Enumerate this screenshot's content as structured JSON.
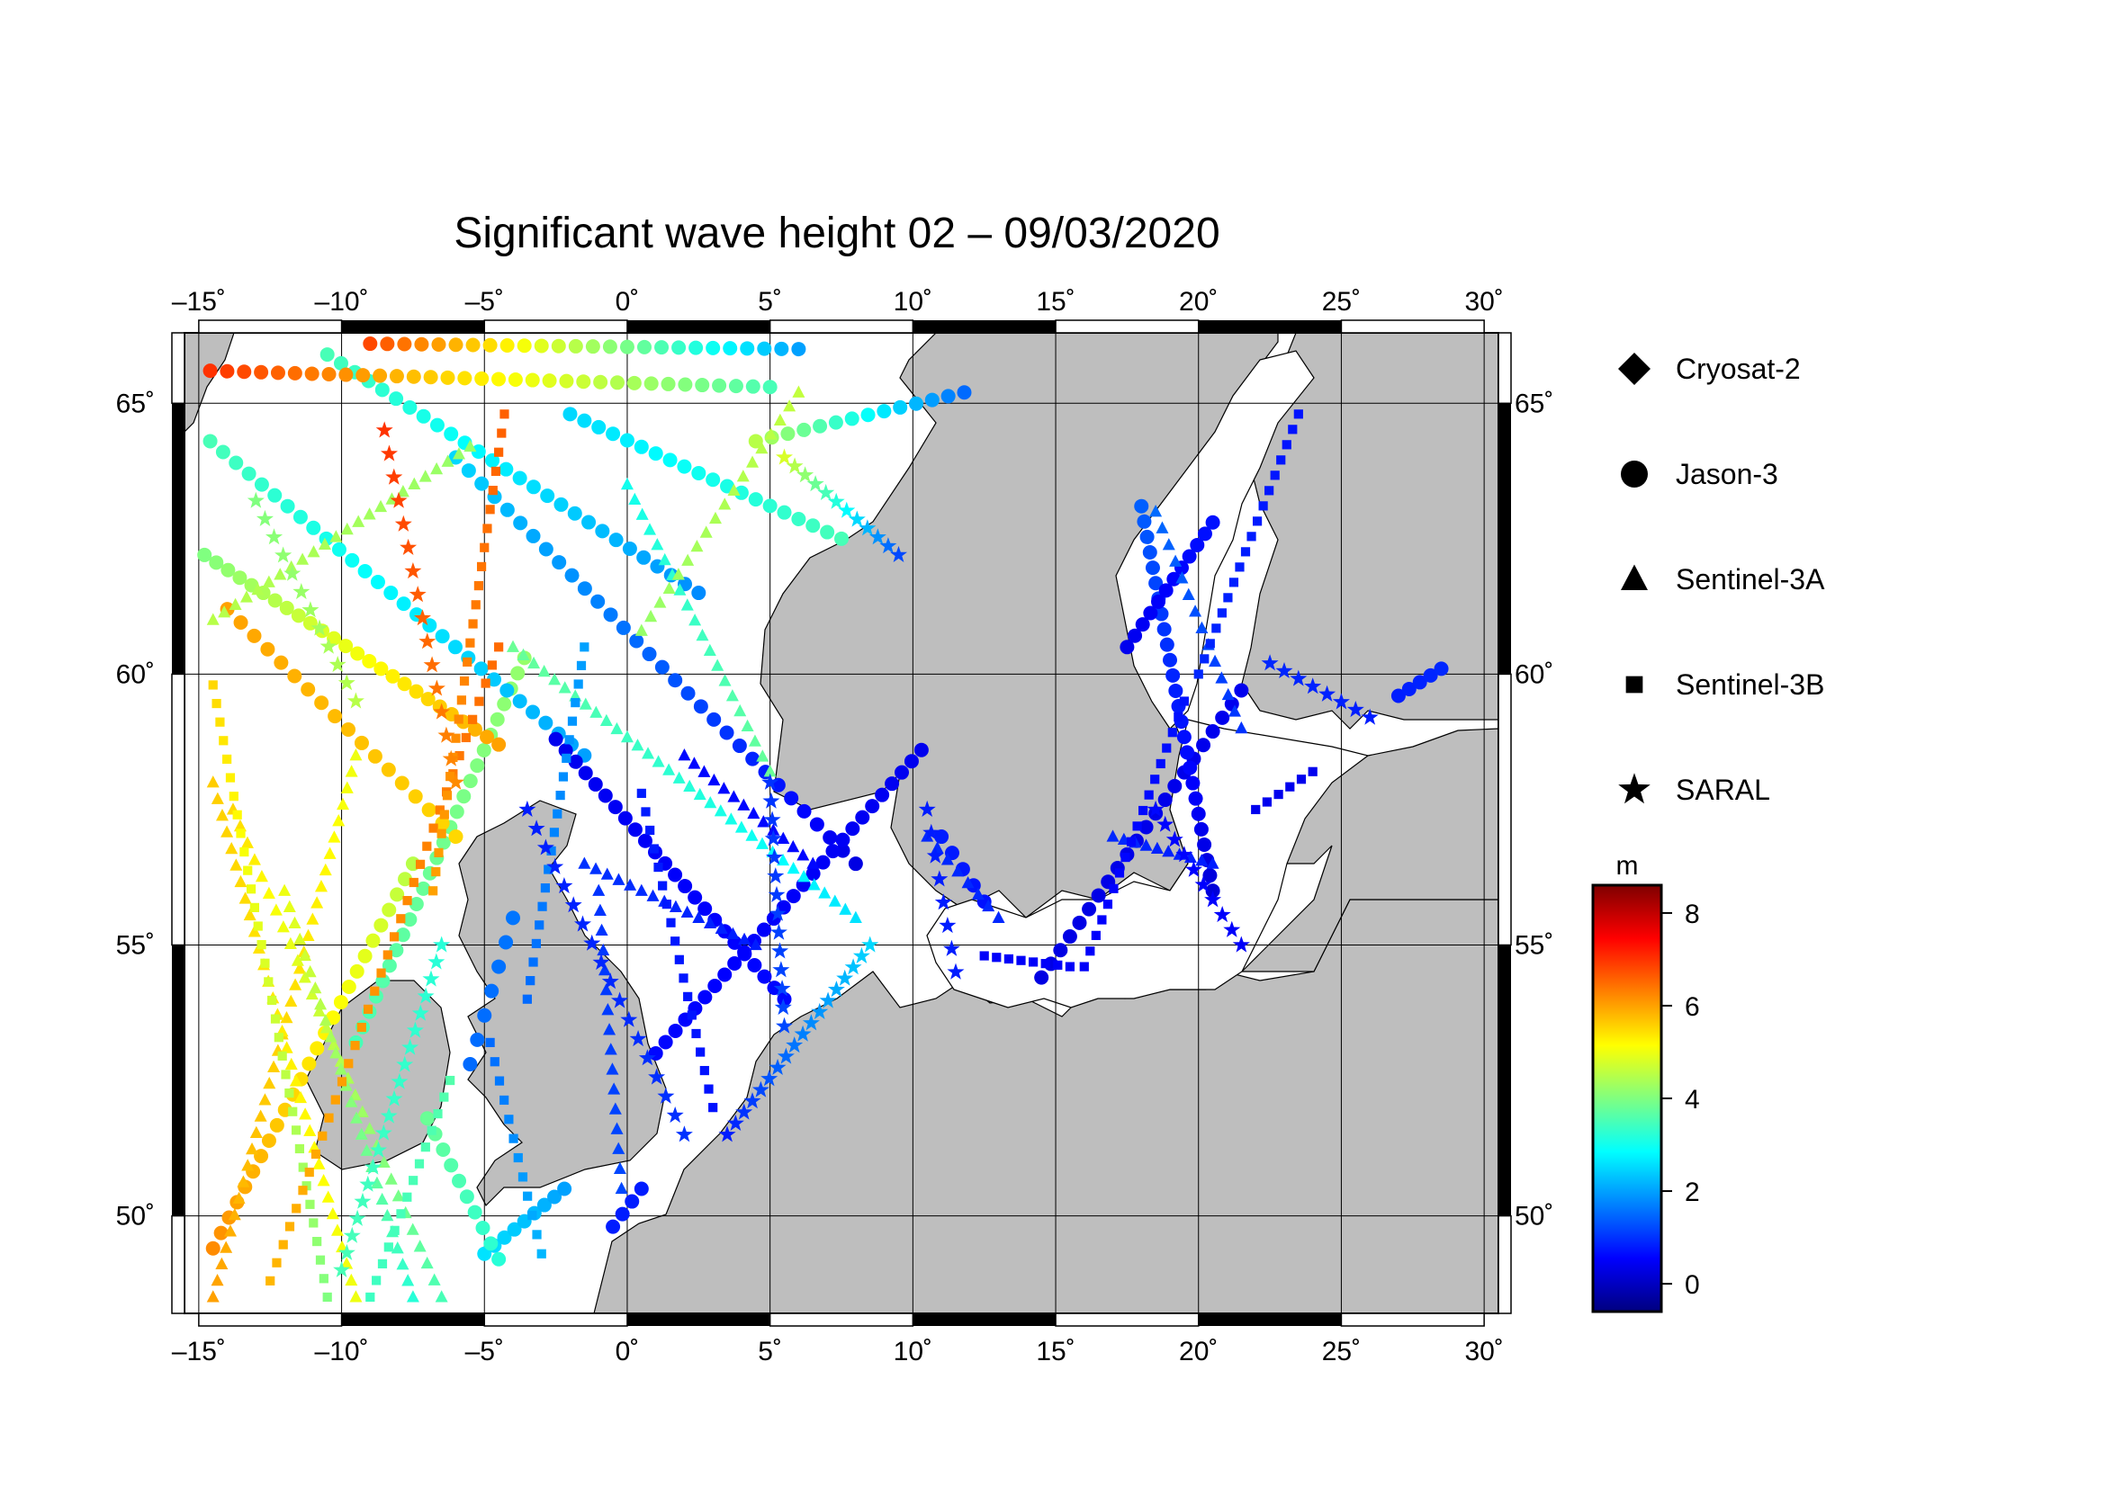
{
  "title": "Significant wave height 02 – 09/03/2020",
  "map": {
    "lon_range": [
      -15.5,
      30.5
    ],
    "lat_range": [
      48.2,
      66.3
    ],
    "lon_ticks": [
      {
        "value": -15,
        "label": "–15˚"
      },
      {
        "value": -10,
        "label": "–10˚"
      },
      {
        "value": -5,
        "label": "–5˚"
      },
      {
        "value": 0,
        "label": "0˚"
      },
      {
        "value": 5,
        "label": "5˚"
      },
      {
        "value": 10,
        "label": "10˚"
      },
      {
        "value": 15,
        "label": "15˚"
      },
      {
        "value": 20,
        "label": "20˚"
      },
      {
        "value": 25,
        "label": "25˚"
      },
      {
        "value": 30,
        "label": "30˚"
      }
    ],
    "lat_ticks": [
      {
        "value": 50,
        "label": "50˚"
      },
      {
        "value": 55,
        "label": "55˚"
      },
      {
        "value": 60,
        "label": "60˚"
      },
      {
        "value": 65,
        "label": "65˚"
      }
    ],
    "grid": true,
    "land_color": "#bebebe",
    "sea_color": "#ffffff"
  },
  "legend": {
    "items": [
      {
        "name": "Cryosat-2",
        "marker": "diamond"
      },
      {
        "name": "Jason-3",
        "marker": "circle"
      },
      {
        "name": "Sentinel-3A",
        "marker": "triangle"
      },
      {
        "name": "Sentinel-3B",
        "marker": "square"
      },
      {
        "name": "SARAL",
        "marker": "star"
      }
    ]
  },
  "colorbar": {
    "unit": "m",
    "range": [
      -0.6,
      8.6
    ],
    "ticks": [
      {
        "value": 0,
        "label": "0"
      },
      {
        "value": 2,
        "label": "2"
      },
      {
        "value": 4,
        "label": "4"
      },
      {
        "value": 6,
        "label": "6"
      },
      {
        "value": 8,
        "label": "8"
      }
    ],
    "colors": [
      "#00007f",
      "#0000ff",
      "#0080ff",
      "#00ffff",
      "#80ff80",
      "#ffff00",
      "#ff8000",
      "#ff0000",
      "#7f0000"
    ]
  },
  "chart_data": {
    "type": "scatter",
    "x_unit": "longitude (deg)",
    "y_unit": "latitude (deg)",
    "value_unit": "m",
    "tracks": [
      {
        "satellite": "Jason-3",
        "marker": "circle",
        "from": [
          -14.5,
          49.4
        ],
        "to": [
          -7.5,
          56.5
        ],
        "v0": 6.2,
        "v1": 4.5,
        "n": 26
      },
      {
        "satellite": "Jason-3",
        "marker": "circle",
        "from": [
          -9.5,
          53.2
        ],
        "to": [
          -3.6,
          60.3
        ],
        "v0": 3.5,
        "v1": 4.2,
        "n": 26
      },
      {
        "satellite": "Jason-3",
        "marker": "circle",
        "from": [
          -14.8,
          62.2
        ],
        "to": [
          -4.5,
          58.7
        ],
        "v0": 4.0,
        "v1": 6.0,
        "n": 26
      },
      {
        "satellite": "Jason-3",
        "marker": "circle",
        "from": [
          -14.6,
          64.3
        ],
        "to": [
          -1.5,
          58.5
        ],
        "v0": 3.5,
        "v1": 2.0,
        "n": 30
      },
      {
        "satellite": "Jason-3",
        "marker": "circle",
        "from": [
          -10.5,
          65.9
        ],
        "to": [
          2.5,
          61.5
        ],
        "v0": 3.5,
        "v1": 1.8,
        "n": 28
      },
      {
        "satellite": "Jason-3",
        "marker": "circle",
        "from": [
          -6.0,
          64.0
        ],
        "to": [
          8.0,
          56.5
        ],
        "v0": 2.5,
        "v1": 0.3,
        "n": 32
      },
      {
        "satellite": "Jason-3",
        "marker": "circle",
        "from": [
          -14.6,
          65.6
        ],
        "to": [
          5.0,
          65.3
        ],
        "v0": 7.0,
        "v1": 3.5,
        "n": 34
      },
      {
        "satellite": "Jason-3",
        "marker": "circle",
        "from": [
          -9.0,
          66.1
        ],
        "to": [
          6.0,
          66.0
        ],
        "v0": 6.8,
        "v1": 2.0,
        "n": 26
      },
      {
        "satellite": "Jason-3",
        "marker": "circle",
        "from": [
          -14.0,
          61.2
        ],
        "to": [
          -6.0,
          57.0
        ],
        "v0": 6.0,
        "v1": 5.5,
        "n": 18
      },
      {
        "satellite": "Jason-3",
        "marker": "circle",
        "from": [
          4.5,
          64.3
        ],
        "to": [
          11.8,
          65.2
        ],
        "v0": 4.5,
        "v1": 1.5,
        "n": 14
      },
      {
        "satellite": "Jason-3",
        "marker": "circle",
        "from": [
          -2.0,
          64.8
        ],
        "to": [
          7.5,
          62.5
        ],
        "v0": 2.5,
        "v1": 3.5,
        "n": 20
      },
      {
        "satellite": "Jason-3",
        "marker": "circle",
        "from": [
          -2.5,
          58.8
        ],
        "to": [
          5.5,
          54.0
        ],
        "v0": 0.4,
        "v1": 0.6,
        "n": 24
      },
      {
        "satellite": "Jason-3",
        "marker": "circle",
        "from": [
          1.0,
          53.0
        ],
        "to": [
          10.3,
          58.6
        ],
        "v0": 0.6,
        "v1": 0.4,
        "n": 28
      },
      {
        "satellite": "Jason-3",
        "marker": "circle",
        "from": [
          0.5,
          50.5
        ],
        "to": [
          -0.5,
          49.8
        ],
        "v0": 0.8,
        "v1": 0.8,
        "n": 4
      },
      {
        "satellite": "Jason-3",
        "marker": "circle",
        "from": [
          -5.5,
          52.8
        ],
        "to": [
          -4.0,
          55.5
        ],
        "v0": 1.5,
        "v1": 1.6,
        "n": 7
      },
      {
        "satellite": "Jason-3",
        "marker": "circle",
        "from": [
          -5.0,
          49.3
        ],
        "to": [
          -2.2,
          50.5
        ],
        "v0": 2.6,
        "v1": 2.0,
        "n": 9
      },
      {
        "satellite": "Jason-3",
        "marker": "circle",
        "from": [
          -7.0,
          51.8
        ],
        "to": [
          -4.5,
          49.2
        ],
        "v0": 3.8,
        "v1": 3.2,
        "n": 10
      },
      {
        "satellite": "Jason-3",
        "marker": "circle",
        "from": [
          11.0,
          57.0
        ],
        "to": [
          12.5,
          55.8
        ],
        "v0": 0.8,
        "v1": 0.7,
        "n": 5
      },
      {
        "satellite": "Jason-3",
        "marker": "circle",
        "from": [
          14.5,
          54.4
        ],
        "to": [
          21.5,
          59.7
        ],
        "v0": 0.3,
        "v1": 0.4,
        "n": 22
      },
      {
        "satellite": "Jason-3",
        "marker": "circle",
        "from": [
          18.0,
          63.1
        ],
        "to": [
          20.5,
          56.0
        ],
        "v0": 1.4,
        "v1": 0.2,
        "n": 26
      },
      {
        "satellite": "Jason-3",
        "marker": "circle",
        "from": [
          17.5,
          60.5
        ],
        "to": [
          20.5,
          62.8
        ],
        "v0": 0.4,
        "v1": 0.7,
        "n": 12
      },
      {
        "satellite": "Jason-3",
        "marker": "circle",
        "from": [
          27.0,
          59.6
        ],
        "to": [
          28.5,
          60.1
        ],
        "v0": 0.8,
        "v1": 0.9,
        "n": 5
      },
      {
        "satellite": "Sentinel-3A",
        "marker": "triangle",
        "from": [
          -14.5,
          48.5
        ],
        "to": [
          -9.5,
          58.5
        ],
        "v0": 6.0,
        "v1": 5.0,
        "n": 34
      },
      {
        "satellite": "Sentinel-3A",
        "marker": "triangle",
        "from": [
          -9.5,
          48.5
        ],
        "to": [
          -14.5,
          58.0
        ],
        "v0": 5.0,
        "v1": 5.6,
        "n": 32
      },
      {
        "satellite": "Sentinel-3A",
        "marker": "triangle",
        "from": [
          -6.5,
          48.5
        ],
        "to": [
          -13.8,
          57.5
        ],
        "v0": 3.5,
        "v1": 5.5,
        "n": 30
      },
      {
        "satellite": "Sentinel-3A",
        "marker": "triangle",
        "from": [
          -12.0,
          56.0
        ],
        "to": [
          -7.5,
          48.5
        ],
        "v0": 5.0,
        "v1": 3.2,
        "n": 26
      },
      {
        "satellite": "Sentinel-3A",
        "marker": "triangle",
        "from": [
          -4.0,
          60.5
        ],
        "to": [
          8.0,
          55.5
        ],
        "v0": 3.8,
        "v1": 2.6,
        "n": 34
      },
      {
        "satellite": "Sentinel-3A",
        "marker": "triangle",
        "from": [
          -14.5,
          61.0
        ],
        "to": [
          -5.5,
          64.2
        ],
        "v0": 4.5,
        "v1": 4.2,
        "n": 24
      },
      {
        "satellite": "Sentinel-3A",
        "marker": "triangle",
        "from": [
          0.0,
          63.5
        ],
        "to": [
          5.0,
          58.2
        ],
        "v0": 3.0,
        "v1": 3.8,
        "n": 20
      },
      {
        "satellite": "Sentinel-3A",
        "marker": "triangle",
        "from": [
          6.0,
          65.2
        ],
        "to": [
          0.5,
          60.8
        ],
        "v0": 4.6,
        "v1": 4.2,
        "n": 18
      },
      {
        "satellite": "Sentinel-3A",
        "marker": "triangle",
        "from": [
          -1.5,
          56.5
        ],
        "to": [
          4.5,
          55.0
        ],
        "v0": 1.0,
        "v1": 0.8,
        "n": 16
      },
      {
        "satellite": "Sentinel-3A",
        "marker": "triangle",
        "from": [
          2.0,
          58.5
        ],
        "to": [
          6.5,
          56.5
        ],
        "v0": 0.6,
        "v1": 0.6,
        "n": 14
      },
      {
        "satellite": "Sentinel-3A",
        "marker": "triangle",
        "from": [
          -1.0,
          56.0
        ],
        "to": [
          -0.2,
          50.5
        ],
        "v0": 1.0,
        "v1": 1.2,
        "n": 16
      },
      {
        "satellite": "Sentinel-3A",
        "marker": "triangle",
        "from": [
          10.5,
          57.0
        ],
        "to": [
          13.0,
          55.5
        ],
        "v0": 0.9,
        "v1": 0.9,
        "n": 8
      },
      {
        "satellite": "Sentinel-3A",
        "marker": "triangle",
        "from": [
          18.5,
          63.0
        ],
        "to": [
          21.5,
          59.0
        ],
        "v0": 1.5,
        "v1": 1.0,
        "n": 14
      },
      {
        "satellite": "Sentinel-3A",
        "marker": "triangle",
        "from": [
          17.0,
          57.0
        ],
        "to": [
          20.5,
          56.5
        ],
        "v0": 0.9,
        "v1": 0.8,
        "n": 10
      },
      {
        "satellite": "Sentinel-3B",
        "marker": "square",
        "from": [
          -14.5,
          59.8
        ],
        "to": [
          -10.5,
          48.5
        ],
        "v0": 5.5,
        "v1": 4.0,
        "n": 34
      },
      {
        "satellite": "Sentinel-3B",
        "marker": "square",
        "from": [
          -12.5,
          48.8
        ],
        "to": [
          -4.5,
          60.5
        ],
        "v0": 5.8,
        "v1": 6.5,
        "n": 36
      },
      {
        "satellite": "Sentinel-3B",
        "marker": "square",
        "from": [
          -4.3,
          64.8
        ],
        "to": [
          -6.8,
          56.0
        ],
        "v0": 6.6,
        "v1": 6.0,
        "n": 26
      },
      {
        "satellite": "Sentinel-3B",
        "marker": "square",
        "from": [
          -1.5,
          60.5
        ],
        "to": [
          -3.5,
          54.0
        ],
        "v0": 2.0,
        "v1": 1.5,
        "n": 20
      },
      {
        "satellite": "Sentinel-3B",
        "marker": "square",
        "from": [
          0.5,
          57.8
        ],
        "to": [
          3.0,
          52.0
        ],
        "v0": 0.8,
        "v1": 0.7,
        "n": 18
      },
      {
        "satellite": "Sentinel-3B",
        "marker": "square",
        "from": [
          -4.8,
          53.2
        ],
        "to": [
          -3.0,
          49.3
        ],
        "v0": 1.5,
        "v1": 2.2,
        "n": 12
      },
      {
        "satellite": "Sentinel-3B",
        "marker": "square",
        "from": [
          -9.0,
          48.5
        ],
        "to": [
          -6.2,
          52.5
        ],
        "v0": 3.4,
        "v1": 3.6,
        "n": 14
      },
      {
        "satellite": "Sentinel-3B",
        "marker": "square",
        "from": [
          16.0,
          54.6
        ],
        "to": [
          19.5,
          59.5
        ],
        "v0": 0.5,
        "v1": 0.7,
        "n": 18
      },
      {
        "satellite": "Sentinel-3B",
        "marker": "square",
        "from": [
          20.0,
          60.0
        ],
        "to": [
          23.5,
          64.8
        ],
        "v0": 0.9,
        "v1": 0.7,
        "n": 18
      },
      {
        "satellite": "Sentinel-3B",
        "marker": "square",
        "from": [
          12.5,
          54.8
        ],
        "to": [
          15.5,
          54.6
        ],
        "v0": 0.5,
        "v1": 0.5,
        "n": 8
      },
      {
        "satellite": "Sentinel-3B",
        "marker": "square",
        "from": [
          22.0,
          57.5
        ],
        "to": [
          24.0,
          58.2
        ],
        "v0": 0.4,
        "v1": 0.4,
        "n": 6
      },
      {
        "satellite": "SARAL",
        "marker": "star",
        "from": [
          -8.5,
          64.5
        ],
        "to": [
          -6.0,
          58.0
        ],
        "v0": 7.0,
        "v1": 6.2,
        "n": 16
      },
      {
        "satellite": "SARAL",
        "marker": "star",
        "from": [
          -13.0,
          63.2
        ],
        "to": [
          -9.5,
          59.5
        ],
        "v0": 4.0,
        "v1": 4.5,
        "n": 12
      },
      {
        "satellite": "SARAL",
        "marker": "star",
        "from": [
          -3.5,
          57.5
        ],
        "to": [
          2.0,
          51.5
        ],
        "v0": 0.8,
        "v1": 1.0,
        "n": 18
      },
      {
        "satellite": "SARAL",
        "marker": "star",
        "from": [
          3.5,
          51.5
        ],
        "to": [
          8.5,
          55.0
        ],
        "v0": 0.8,
        "v1": 2.5,
        "n": 18
      },
      {
        "satellite": "SARAL",
        "marker": "star",
        "from": [
          5.0,
          58.0
        ],
        "to": [
          5.5,
          53.5
        ],
        "v0": 1.0,
        "v1": 1.2,
        "n": 14
      },
      {
        "satellite": "SARAL",
        "marker": "star",
        "from": [
          -10.0,
          49.0
        ],
        "to": [
          -6.5,
          55.0
        ],
        "v0": 3.5,
        "v1": 3.2,
        "n": 20
      },
      {
        "satellite": "SARAL",
        "marker": "star",
        "from": [
          5.5,
          64.0
        ],
        "to": [
          9.5,
          62.2
        ],
        "v0": 4.8,
        "v1": 1.2,
        "n": 12
      },
      {
        "satellite": "SARAL",
        "marker": "star",
        "from": [
          10.5,
          57.5
        ],
        "to": [
          11.5,
          54.5
        ],
        "v0": 0.8,
        "v1": 0.8,
        "n": 8
      },
      {
        "satellite": "SARAL",
        "marker": "star",
        "from": [
          18.5,
          57.5
        ],
        "to": [
          21.5,
          55.0
        ],
        "v0": 0.6,
        "v1": 0.5,
        "n": 10
      },
      {
        "satellite": "SARAL",
        "marker": "star",
        "from": [
          22.5,
          60.2
        ],
        "to": [
          26.0,
          59.2
        ],
        "v0": 0.9,
        "v1": 0.8,
        "n": 8
      }
    ]
  }
}
